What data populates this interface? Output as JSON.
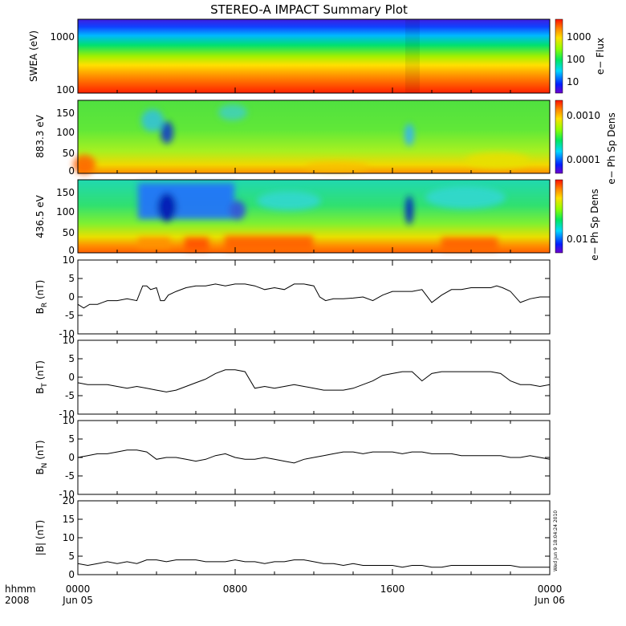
{
  "title": "STEREO-A IMPACT Summary Plot",
  "time_axis": {
    "corner_top": "hhmm",
    "corner_bottom": "2008",
    "ticks": [
      {
        "top": "0000",
        "bottom": "Jun 05",
        "hour": 0
      },
      {
        "top": "0800",
        "bottom": "",
        "hour": 8
      },
      {
        "top": "1600",
        "bottom": "",
        "hour": 16
      },
      {
        "top": "0000",
        "bottom": "Jun 06",
        "hour": 24
      }
    ]
  },
  "spectrograms": [
    {
      "ylabel": "SWEA (eV)",
      "yticks": [
        "1000",
        "100"
      ],
      "cbar_label": "e− Flux",
      "cbar_ticks": [
        "1000",
        "100",
        "10"
      ]
    },
    {
      "ylabel": "883.3 eV",
      "yticks": [
        "150",
        "100",
        "50",
        "0"
      ],
      "cbar_label": "e− Ph Sp Dens",
      "cbar_ticks": [
        "0.0010",
        "0.0001"
      ]
    },
    {
      "ylabel": "436.5 eV",
      "yticks": [
        "150",
        "100",
        "50",
        "0"
      ],
      "cbar_label": "e− Ph Sp Dens",
      "cbar_ticks": [
        "0.01"
      ]
    }
  ],
  "footer_stamp": "Wed Jun 9 18:04:24 2010",
  "colors": {
    "line": "#000000",
    "axis": "#000000"
  },
  "chart_data": [
    {
      "type": "line",
      "ylabel": "B",
      "ylabel_sub": "R",
      "ylabel_unit": "(nT)",
      "ylim": [
        -10,
        10
      ],
      "yticks": [
        "10",
        "5",
        "0",
        "-5",
        "-10"
      ],
      "series": [
        {
          "x": [
            0,
            0.3,
            0.6,
            1,
            1.5,
            2,
            2.5,
            3,
            3.3,
            3.5,
            3.7,
            4,
            4.2,
            4.4,
            4.6,
            5,
            5.5,
            6,
            6.5,
            7,
            7.5,
            8,
            8.5,
            9,
            9.5,
            10,
            10.5,
            11,
            11.5,
            12,
            12.3,
            12.6,
            13,
            13.5,
            14,
            14.5,
            15,
            15.5,
            16,
            16.5,
            17,
            17.5,
            18,
            18.5,
            19,
            19.5,
            20,
            20.5,
            21,
            21.3,
            21.6,
            22,
            22.5,
            23,
            23.5,
            24
          ],
          "y": [
            -2,
            -3,
            -2,
            -2,
            -1,
            -1,
            -0.5,
            -1,
            3,
            3,
            2,
            2.5,
            -1,
            -1,
            0.5,
            1.5,
            2.5,
            3,
            3,
            3.5,
            3,
            3.5,
            3.5,
            3,
            2,
            2.5,
            2,
            3.5,
            3.5,
            3,
            0,
            -1,
            -0.5,
            -0.5,
            -0.3,
            0,
            -1,
            0.5,
            1.5,
            1.5,
            1.5,
            2,
            -1.5,
            0.5,
            2,
            2,
            2.5,
            2.5,
            2.5,
            3,
            2.5,
            1.5,
            -1.5,
            -0.5,
            0,
            0
          ]
        }
      ]
    },
    {
      "type": "line",
      "ylabel": "B",
      "ylabel_sub": "T",
      "ylabel_unit": "(nT)",
      "ylim": [
        -10,
        10
      ],
      "yticks": [
        "10",
        "5",
        "0",
        "-5",
        "-10"
      ],
      "series": [
        {
          "x": [
            0,
            0.5,
            1,
            1.5,
            2,
            2.5,
            3,
            3.5,
            4,
            4.5,
            5,
            5.5,
            6,
            6.5,
            7,
            7.5,
            8,
            8.5,
            9,
            9.5,
            10,
            10.5,
            11,
            11.5,
            12,
            12.5,
            13,
            13.5,
            14,
            14.5,
            15,
            15.5,
            16,
            16.5,
            17,
            17.5,
            18,
            18.5,
            19,
            19.5,
            20,
            20.5,
            21,
            21.5,
            22,
            22.5,
            23,
            23.5,
            24
          ],
          "y": [
            -1.5,
            -2,
            -2,
            -2,
            -2.5,
            -3,
            -2.5,
            -3,
            -3.5,
            -4,
            -3.5,
            -2.5,
            -1.5,
            -0.5,
            1,
            2,
            2,
            1.5,
            -3,
            -2.5,
            -3,
            -2.5,
            -2,
            -2.5,
            -3,
            -3.5,
            -3.5,
            -3.5,
            -3,
            -2,
            -1,
            0.5,
            1,
            1.5,
            1.5,
            -1,
            1,
            1.5,
            1.5,
            1.5,
            1.5,
            1.5,
            1.5,
            1,
            -1,
            -2,
            -2,
            -2.5,
            -2
          ]
        }
      ]
    },
    {
      "type": "line",
      "ylabel": "B",
      "ylabel_sub": "N",
      "ylabel_unit": "(nT)",
      "ylim": [
        -10,
        10
      ],
      "yticks": [
        "10",
        "5",
        "0",
        "-5",
        "-10"
      ],
      "series": [
        {
          "x": [
            0,
            0.5,
            1,
            1.5,
            2,
            2.5,
            3,
            3.5,
            4,
            4.5,
            5,
            5.5,
            6,
            6.5,
            7,
            7.5,
            8,
            8.5,
            9,
            9.5,
            10,
            10.5,
            11,
            11.5,
            12,
            12.5,
            13,
            13.5,
            14,
            14.5,
            15,
            15.5,
            16,
            16.5,
            17,
            17.5,
            18,
            18.5,
            19,
            19.5,
            20,
            20.5,
            21,
            21.5,
            22,
            22.5,
            23,
            23.5,
            24
          ],
          "y": [
            0,
            0.5,
            1,
            1,
            1.5,
            2,
            2,
            1.5,
            -0.5,
            0,
            0,
            -0.5,
            -1,
            -0.5,
            0.5,
            1,
            0,
            -0.5,
            -0.5,
            0,
            -0.5,
            -1,
            -1.5,
            -0.5,
            0,
            0.5,
            1,
            1.5,
            1.5,
            1,
            1.5,
            1.5,
            1.5,
            1,
            1.5,
            1.5,
            1,
            1,
            1,
            0.5,
            0.5,
            0.5,
            0.5,
            0.5,
            0,
            0,
            0.5,
            0,
            -0.5
          ]
        }
      ]
    },
    {
      "type": "line",
      "ylabel": "|B|",
      "ylabel_sub": "",
      "ylabel_unit": "(nT)",
      "ylim": [
        0,
        20
      ],
      "yticks": [
        "20",
        "15",
        "10",
        "5",
        "0"
      ],
      "series": [
        {
          "x": [
            0,
            0.5,
            1,
            1.5,
            2,
            2.5,
            3,
            3.5,
            4,
            4.5,
            5,
            5.5,
            6,
            6.5,
            7,
            7.5,
            8,
            8.5,
            9,
            9.5,
            10,
            10.5,
            11,
            11.5,
            12,
            12.5,
            13,
            13.5,
            14,
            14.5,
            15,
            15.5,
            16,
            16.5,
            17,
            17.5,
            18,
            18.5,
            19,
            19.5,
            20,
            20.5,
            21,
            21.5,
            22,
            22.5,
            23,
            23.5,
            24
          ],
          "y": [
            3,
            2.5,
            3,
            3.5,
            3,
            3.5,
            3,
            4,
            4,
            3.5,
            4,
            4,
            4,
            3.5,
            3.5,
            3.5,
            4,
            3.5,
            3.5,
            3,
            3.5,
            3.5,
            4,
            4,
            3.5,
            3,
            3,
            2.5,
            3,
            2.5,
            2.5,
            2.5,
            2.5,
            2,
            2.5,
            2.5,
            2,
            2,
            2.5,
            2.5,
            2.5,
            2.5,
            2.5,
            2.5,
            2.5,
            2,
            2,
            2,
            2
          ]
        }
      ]
    }
  ]
}
